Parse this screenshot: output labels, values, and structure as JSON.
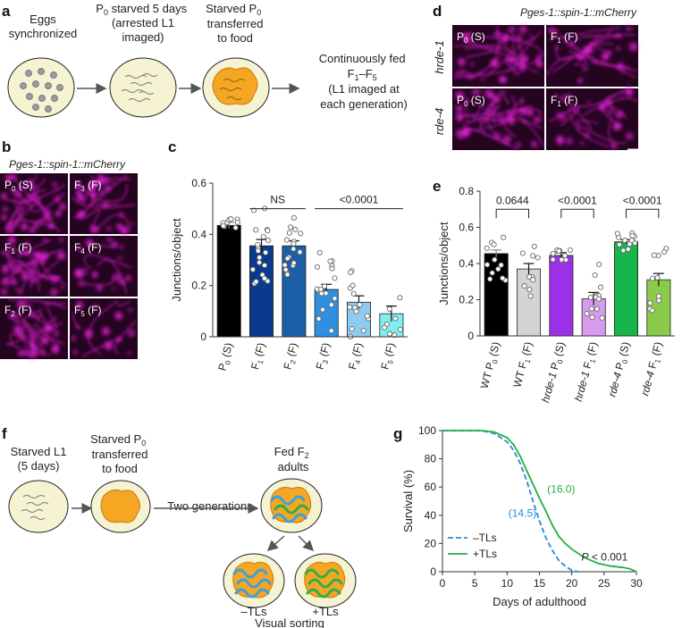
{
  "panel_labels": [
    "a",
    "b",
    "c",
    "d",
    "e",
    "f",
    "g"
  ],
  "panel_a": {
    "steps": [
      "Eggs synchronized",
      "P0 starved 5 days (arrested L1 imaged)",
      "Starved P0 transferred to food"
    ],
    "final_text": [
      "Continuously fed",
      "F1–F5",
      "(L1 imaged at",
      "each generation)"
    ]
  },
  "panel_b": {
    "title": "Pges-1::spin-1::mCherry",
    "tiles": [
      "P0 (S)",
      "F3 (F)",
      "F1 (F)",
      "F4 (F)",
      "F2 (F)",
      "F5 (F)"
    ]
  },
  "panel_d": {
    "title": "Pges-1::spin-1::mCherry",
    "rows": [
      "hrde-1",
      "rde-4"
    ],
    "tiles": [
      "P0 (S)",
      "F1 (F)",
      "P0 (S)",
      "F1 (F)"
    ]
  },
  "panel_f": {
    "texts": [
      "Starved L1",
      "(5 days)",
      "Starved P0",
      "transferred",
      "to food",
      "Two generations",
      "Fed F2",
      "adults",
      "–TLs",
      "+TLs",
      "Visual sorting"
    ]
  },
  "colors": {
    "magenta": "#e020d0",
    "plate_fill": "#f6f3d2",
    "egg": "#9a9aa8",
    "food": "#f5a623",
    "worm_blue": "#3aa0e0",
    "worm_green": "#2db04a",
    "line_blue": "#2a8ad8",
    "line_green": "#1fb040"
  },
  "chart_data": [
    {
      "panel": "c",
      "type": "bar",
      "ylabel": "Junctions/object",
      "ylim": [
        0,
        0.6
      ],
      "yticks": [
        "0",
        "0.2",
        "0.4",
        "0.6"
      ],
      "categories": [
        "P0 (S)",
        "F1 (F)",
        "F2 (F)",
        "F3 (F)",
        "F4 (F)",
        "F5 (F)"
      ],
      "values": [
        0.435,
        0.355,
        0.355,
        0.185,
        0.135,
        0.09
      ],
      "errors": [
        0.012,
        0.025,
        0.02,
        0.02,
        0.025,
        0.03
      ],
      "colors": [
        "#000000",
        "#0b3a8c",
        "#1d5fa6",
        "#2f8fe0",
        "#8ecbf0",
        "#7ef0f2"
      ],
      "annotations": [
        {
          "text": "NS",
          "from": 1,
          "to": 2,
          "y": 0.5
        },
        {
          "text": "<0.0001",
          "from": 3,
          "to": 5,
          "y": 0.5
        }
      ]
    },
    {
      "panel": "e",
      "type": "bar",
      "ylabel": "Junctions/object",
      "ylim": [
        0,
        0.8
      ],
      "yticks": [
        "0",
        "0.2",
        "0.4",
        "0.6",
        "0.8"
      ],
      "categories": [
        "WT P0 (S)",
        "WT F1 (F)",
        "hrde-1 P0 (S)",
        "hrde-1 F1 (F)",
        "rde-4 P0 (S)",
        "rde-4 F1 (F)"
      ],
      "values": [
        0.455,
        0.37,
        0.445,
        0.205,
        0.52,
        0.31
      ],
      "errors": [
        0.02,
        0.03,
        0.015,
        0.035,
        0.012,
        0.035
      ],
      "colors": [
        "#000000",
        "#d4d4d4",
        "#9b30e8",
        "#d79aee",
        "#18b54a",
        "#8acb4a"
      ],
      "annotations": [
        {
          "text": "0.0644",
          "from": 0,
          "to": 1,
          "y": 0.7
        },
        {
          "text": "<0.0001",
          "from": 2,
          "to": 3,
          "y": 0.7
        },
        {
          "text": "<0.0001",
          "from": 4,
          "to": 5,
          "y": 0.7
        }
      ]
    },
    {
      "panel": "g",
      "type": "line",
      "xlabel": "Days of adulthood",
      "ylabel": "Survival (%)",
      "xlim": [
        0,
        30
      ],
      "ylim": [
        0,
        100
      ],
      "xticks": [
        "0",
        "5",
        "10",
        "15",
        "20",
        "25",
        "30"
      ],
      "yticks": [
        "0",
        "20",
        "40",
        "60",
        "80",
        "100"
      ],
      "series": [
        {
          "name": "–TLs",
          "median_label": "(14.5)",
          "x": [
            0,
            6,
            8,
            10,
            11,
            12,
            13,
            14,
            15,
            16,
            17,
            18,
            19,
            20,
            21
          ],
          "y": [
            100,
            100,
            98,
            92,
            86,
            77,
            65,
            50,
            36,
            24,
            15,
            8,
            4,
            1,
            0
          ]
        },
        {
          "name": "+TLs",
          "median_label": "(16.0)",
          "x": [
            0,
            6,
            8,
            10,
            11,
            12,
            13,
            14,
            15,
            16,
            17,
            18,
            19,
            20,
            22,
            24,
            26,
            28,
            29,
            30
          ],
          "y": [
            100,
            100,
            99,
            95,
            90,
            82,
            72,
            62,
            52,
            43,
            33,
            25,
            20,
            16,
            10,
            6,
            4,
            3,
            2,
            0
          ]
        }
      ],
      "annotation": "P < 0.001"
    }
  ]
}
